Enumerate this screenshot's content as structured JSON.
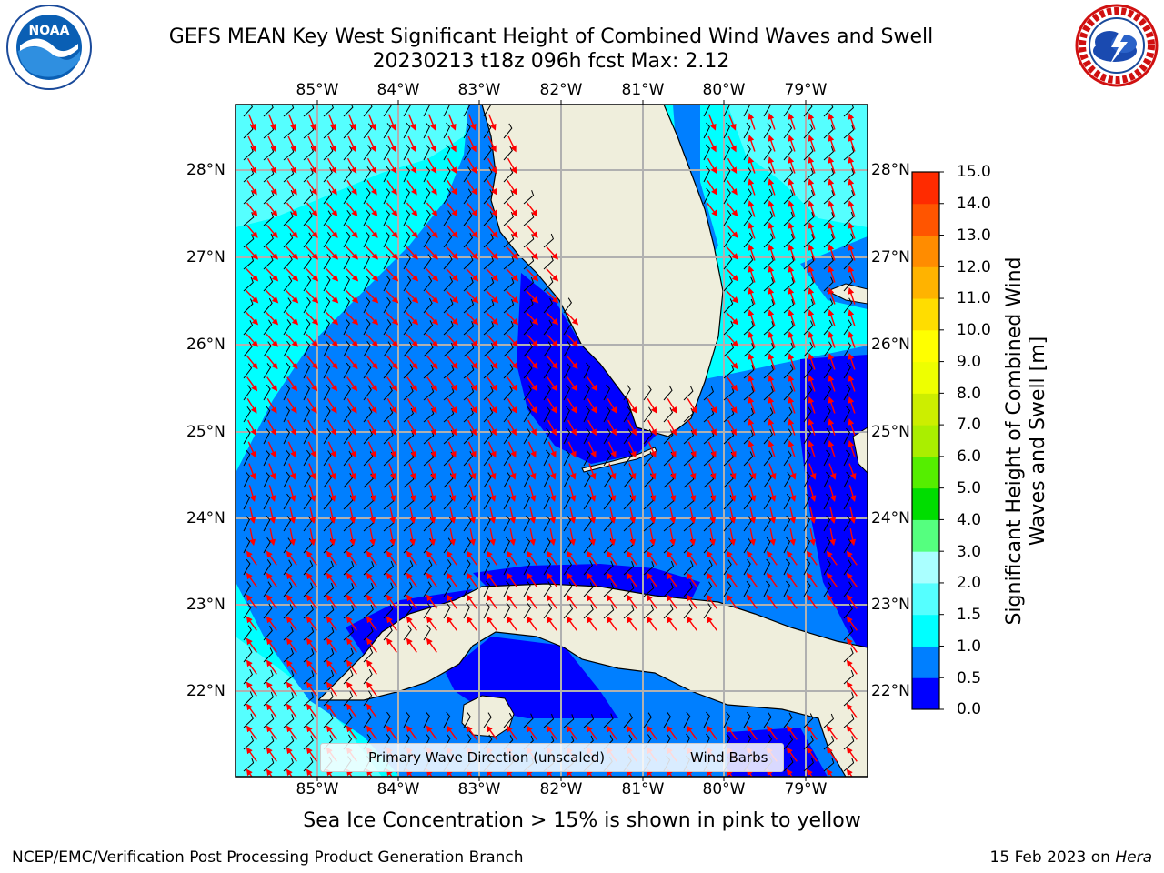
{
  "header": {
    "title_line1": "GEFS MEAN Key West Significant Height of Combined Wind Waves and Swell",
    "title_line2": "20230213 t18z 096h fcst   Max: 2.12"
  },
  "logos": {
    "left_text": "NOAA",
    "left_ring_text": "NATIONAL OCEANIC AND ATMOSPHERIC ADMINISTRATION · U.S. DEPARTMENT OF COMMERCE",
    "right_ring_text": "NATIONAL WEATHER SERVICE"
  },
  "map": {
    "lon_ticks": [
      "85°W",
      "84°W",
      "83°W",
      "82°W",
      "81°W",
      "80°W",
      "79°W"
    ],
    "lat_ticks": [
      "28°N",
      "27°N",
      "26°N",
      "25°N",
      "24°N",
      "23°N",
      "22°N"
    ],
    "land_color": "#efeedc",
    "grid_color": "#b0b0b0"
  },
  "colorbar": {
    "label": "Significant Height of Combined Wind Waves and Swell [m]",
    "ticks": [
      "15.0",
      "14.0",
      "13.0",
      "12.0",
      "11.0",
      "10.0",
      "9.0",
      "8.0",
      "7.0",
      "6.0",
      "5.0",
      "4.0",
      "3.0",
      "2.0",
      "1.5",
      "1.0",
      "0.5",
      "0.0"
    ],
    "colors": [
      "#0000ff",
      "#007fff",
      "#00ffff",
      "#55ffff",
      "#aaffff",
      "#55ff7f",
      "#00dd00",
      "#55ee00",
      "#aaee00",
      "#ccee00",
      "#eeff00",
      "#ffff00",
      "#ffdd00",
      "#ffb300",
      "#ff8c00",
      "#ff5500",
      "#ff2b00"
    ]
  },
  "legend": {
    "wave_label": "Primary Wave Direction (unscaled)",
    "wind_label": "Wind Barbs",
    "wave_color": "#ff0000",
    "wind_color": "#000000"
  },
  "note": "Sea Ice Concentration > 15% is shown in pink to yellow",
  "footer": {
    "left": "NCEP/EMC/Verification Post Processing Product Generation Branch",
    "right_prefix": "15 Feb 2023 on ",
    "right_host": "Hera"
  },
  "wave_colors": {
    "level_0_0_5": "#0000ff",
    "level_0_5_1_0": "#007fff",
    "level_1_0_1_5": "#00ffff",
    "level_1_5_2_0": "#55ffff"
  }
}
